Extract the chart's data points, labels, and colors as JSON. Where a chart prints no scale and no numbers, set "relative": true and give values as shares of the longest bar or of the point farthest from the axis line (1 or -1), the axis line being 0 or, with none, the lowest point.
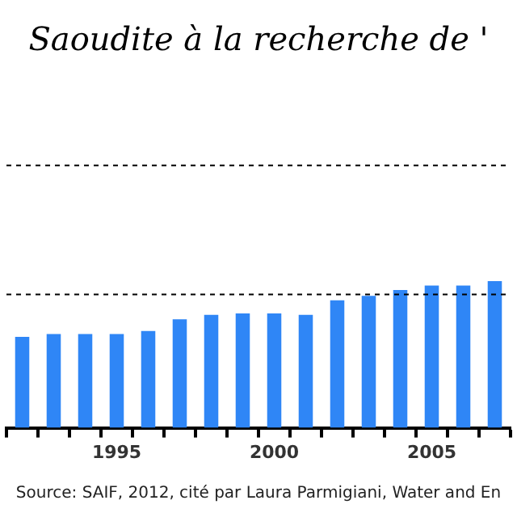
{
  "chart_data": {
    "type": "bar",
    "title": "Saoudite à la recherche de '",
    "relative": true,
    "categories": [
      null,
      null,
      null,
      "1995",
      null,
      null,
      null,
      null,
      "2000",
      null,
      null,
      null,
      null,
      "2005",
      null,
      null
    ],
    "values": [
      0.62,
      0.64,
      0.64,
      0.64,
      0.66,
      0.74,
      0.77,
      0.78,
      0.78,
      0.77,
      0.87,
      0.9,
      0.94,
      0.97,
      0.97,
      1
    ],
    "color": "#2f86f6",
    "ref_lines": [
      {
        "axis": "y",
        "value": 0.91,
        "color": "#000000",
        "line_style": "dashed"
      },
      {
        "axis": "y",
        "value": 1.79,
        "color": "#000000",
        "line_style": "dashed"
      }
    ],
    "annotations": [
      "Source: SAIF, 2012, cité par Laura Parmigiani, Water and En"
    ],
    "legend": false
  }
}
